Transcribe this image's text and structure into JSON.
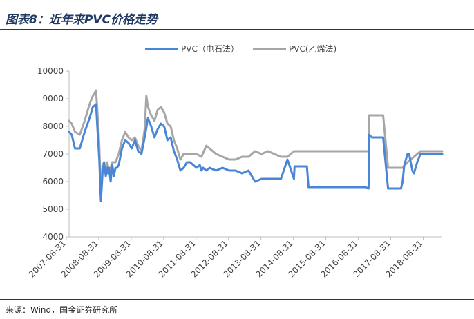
{
  "header": {
    "title": "图表8：近年来PVC价格走势"
  },
  "footer": {
    "source": "来源：Wind，国金证券研究所"
  },
  "colors": {
    "electric": "#4a86d6",
    "ethylene": "#a6a6a6",
    "axis": "#bfbfbf",
    "title": "#1f3864"
  },
  "chart_data": {
    "type": "line",
    "title": "",
    "xlabel": "",
    "ylabel": "",
    "ylim": [
      4000,
      10000
    ],
    "yticks": [
      "4000",
      "5000",
      "6000",
      "7000",
      "8000",
      "9000",
      "10000"
    ],
    "xticks": [
      "2007-08-31",
      "2008-08-31",
      "2009-08-31",
      "2010-08-31",
      "2011-08-31",
      "2012-08-31",
      "2013-08-31",
      "2014-08-31",
      "2015-08-31",
      "2016-08-31",
      "2017-08-31",
      "2018-08-31"
    ],
    "xrange": [
      2007.67,
      2019.17
    ],
    "legend_position": "top",
    "grid": false,
    "series": [
      {
        "name": "PVC（电石法）",
        "x": [
          2007.67,
          2007.75,
          2007.85,
          2008.0,
          2008.15,
          2008.3,
          2008.4,
          2008.5,
          2008.55,
          2008.6,
          2008.65,
          2008.7,
          2008.75,
          2008.8,
          2008.85,
          2008.87,
          2008.9,
          2008.95,
          2009.0,
          2009.05,
          2009.1,
          2009.15,
          2009.2,
          2009.3,
          2009.4,
          2009.5,
          2009.6,
          2009.7,
          2009.8,
          2009.9,
          2010.0,
          2010.1,
          2010.2,
          2010.3,
          2010.4,
          2010.5,
          2010.6,
          2010.7,
          2010.8,
          2010.9,
          2011.0,
          2011.1,
          2011.2,
          2011.3,
          2011.4,
          2011.5,
          2011.6,
          2011.7,
          2011.75,
          2011.8,
          2011.9,
          2012.0,
          2012.2,
          2012.4,
          2012.6,
          2012.8,
          2013.0,
          2013.2,
          2013.4,
          2013.6,
          2013.8,
          2014.0,
          2014.2,
          2014.4,
          2014.6,
          2014.62,
          2014.7,
          2014.9,
          2015.0,
          2015.05,
          2015.3,
          2015.5,
          2015.7,
          2015.72,
          2016.0,
          2016.5,
          2016.8,
          2016.9,
          2016.92,
          2017.0,
          2017.3,
          2017.35,
          2017.5,
          2017.7,
          2017.9,
          2017.95,
          2018.0,
          2018.1,
          2018.15,
          2018.25,
          2018.3,
          2018.4,
          2018.5,
          2018.6,
          2018.8,
          2019.0,
          2019.17
        ],
        "y": [
          7800,
          7700,
          7200,
          7200,
          7800,
          8300,
          8700,
          8800,
          7800,
          6800,
          5300,
          6300,
          6700,
          6200,
          6500,
          6300,
          6500,
          6000,
          6600,
          6200,
          6500,
          6500,
          6600,
          7200,
          7500,
          7400,
          7200,
          7500,
          7100,
          7000,
          7600,
          8300,
          8000,
          7600,
          7900,
          8100,
          8000,
          7500,
          7600,
          7100,
          6800,
          6400,
          6500,
          6700,
          6700,
          6600,
          6500,
          6600,
          6400,
          6500,
          6400,
          6500,
          6400,
          6500,
          6400,
          6400,
          6300,
          6400,
          6000,
          6100,
          6100,
          6100,
          6100,
          6800,
          6100,
          6550,
          6550,
          6550,
          6550,
          5800,
          5800,
          5800,
          5800,
          5800,
          5800,
          5800,
          5800,
          5750,
          7700,
          7600,
          7600,
          7600,
          5750,
          5750,
          5750,
          6000,
          6600,
          7000,
          7000,
          6400,
          6300,
          6700,
          7000,
          7000,
          7000,
          7000,
          7000
        ]
      },
      {
        "name": "PVC(乙烯法)",
        "x": [
          2007.67,
          2007.75,
          2007.85,
          2008.0,
          2008.15,
          2008.3,
          2008.4,
          2008.5,
          2008.55,
          2008.6,
          2008.65,
          2008.7,
          2008.75,
          2008.8,
          2008.85,
          2008.9,
          2009.0,
          2009.1,
          2009.2,
          2009.3,
          2009.4,
          2009.5,
          2009.6,
          2009.7,
          2009.8,
          2009.9,
          2010.0,
          2010.05,
          2010.1,
          2010.2,
          2010.3,
          2010.4,
          2010.5,
          2010.6,
          2010.7,
          2010.8,
          2010.9,
          2011.0,
          2011.1,
          2011.2,
          2011.4,
          2011.6,
          2011.75,
          2011.9,
          2012.0,
          2012.2,
          2012.4,
          2012.6,
          2012.8,
          2013.0,
          2013.2,
          2013.4,
          2013.6,
          2013.8,
          2014.0,
          2014.2,
          2014.4,
          2014.6,
          2015.0,
          2015.5,
          2016.0,
          2016.5,
          2016.8,
          2016.9,
          2016.92,
          2017.0,
          2017.3,
          2017.35,
          2017.5,
          2017.7,
          2017.9,
          2017.95,
          2018.1,
          2018.3,
          2018.5,
          2018.6,
          2018.8,
          2019.0,
          2019.17
        ],
        "y": [
          8200,
          8100,
          7800,
          7700,
          8200,
          8800,
          9100,
          9300,
          8400,
          7300,
          5400,
          6600,
          6700,
          6200,
          6700,
          6300,
          6700,
          6700,
          7000,
          7500,
          7800,
          7600,
          7500,
          7600,
          7300,
          7100,
          7900,
          9100,
          8700,
          8400,
          8200,
          8600,
          8700,
          8500,
          8100,
          8000,
          7500,
          7200,
          6800,
          7000,
          7000,
          7000,
          6900,
          7300,
          7200,
          7000,
          6900,
          6800,
          6800,
          6900,
          6900,
          7100,
          7000,
          7100,
          7000,
          6900,
          6900,
          7100,
          7100,
          7100,
          7100,
          7100,
          7100,
          7100,
          8400,
          8400,
          8400,
          8400,
          6500,
          6500,
          6500,
          6500,
          6700,
          6900,
          7100,
          7100,
          7100,
          7100,
          7100
        ]
      }
    ]
  }
}
